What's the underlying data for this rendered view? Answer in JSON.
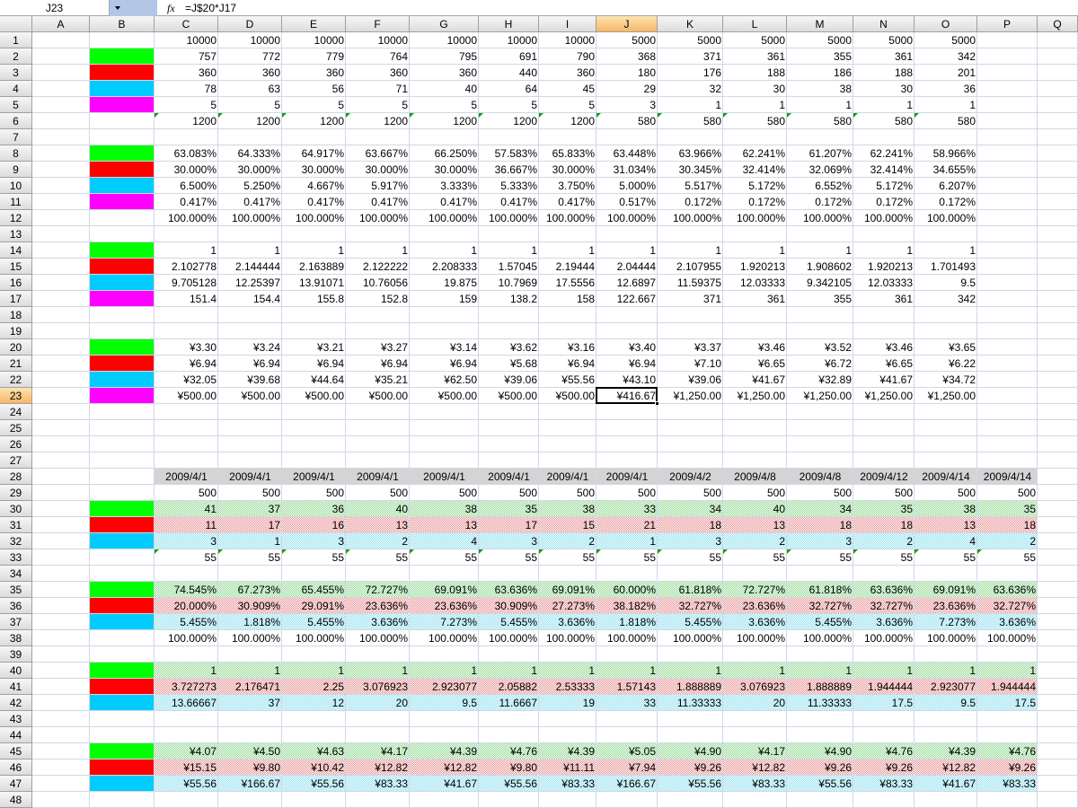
{
  "name_box": "J23",
  "formula": "=J$20*J17",
  "columns": [
    "A",
    "B",
    "C",
    "D",
    "E",
    "F",
    "G",
    "H",
    "I",
    "J",
    "K",
    "L",
    "M",
    "N",
    "O",
    "P",
    "Q"
  ],
  "rows": [
    {
      "number": 1,
      "values": [
        10000,
        10000,
        10000,
        10000,
        10000,
        10000,
        10000,
        5000,
        5000,
        5000,
        5000,
        5000,
        5000
      ]
    },
    {
      "number": 2,
      "swatch": "#00ff00",
      "values": [
        757,
        772,
        779,
        764,
        795,
        691,
        790,
        368,
        371,
        361,
        355,
        361,
        342
      ]
    },
    {
      "number": 3,
      "swatch": "#ff0000",
      "values": [
        360,
        360,
        360,
        360,
        360,
        440,
        360,
        180,
        176,
        188,
        186,
        188,
        201
      ]
    },
    {
      "number": 4,
      "swatch": "#00ccff",
      "values": [
        78,
        63,
        56,
        71,
        40,
        64,
        45,
        29,
        32,
        30,
        38,
        30,
        36
      ]
    },
    {
      "number": 5,
      "swatch": "#ff00ff",
      "values": [
        5,
        5,
        5,
        5,
        5,
        5,
        5,
        3,
        1,
        1,
        1,
        1,
        1
      ]
    },
    {
      "number": 6,
      "flag": true,
      "values": [
        1200,
        1200,
        1200,
        1200,
        1200,
        1200,
        1200,
        580,
        580,
        580,
        580,
        580,
        580
      ]
    },
    {
      "number": 7
    },
    {
      "number": 8,
      "swatch": "#00ff00",
      "values": [
        "63.083%",
        "64.333%",
        "64.917%",
        "63.667%",
        "66.250%",
        "57.583%",
        "65.833%",
        "63.448%",
        "63.966%",
        "62.241%",
        "61.207%",
        "62.241%",
        "58.966%"
      ]
    },
    {
      "number": 9,
      "swatch": "#ff0000",
      "values": [
        "30.000%",
        "30.000%",
        "30.000%",
        "30.000%",
        "30.000%",
        "36.667%",
        "30.000%",
        "31.034%",
        "30.345%",
        "32.414%",
        "32.069%",
        "32.414%",
        "34.655%"
      ]
    },
    {
      "number": 10,
      "swatch": "#00ccff",
      "values": [
        "6.500%",
        "5.250%",
        "4.667%",
        "5.917%",
        "3.333%",
        "5.333%",
        "3.750%",
        "5.000%",
        "5.517%",
        "5.172%",
        "6.552%",
        "5.172%",
        "6.207%"
      ]
    },
    {
      "number": 11,
      "swatch": "#ff00ff",
      "values": [
        "0.417%",
        "0.417%",
        "0.417%",
        "0.417%",
        "0.417%",
        "0.417%",
        "0.417%",
        "0.517%",
        "0.172%",
        "0.172%",
        "0.172%",
        "0.172%",
        "0.172%"
      ]
    },
    {
      "number": 12,
      "values": [
        "100.000%",
        "100.000%",
        "100.000%",
        "100.000%",
        "100.000%",
        "100.000%",
        "100.000%",
        "100.000%",
        "100.000%",
        "100.000%",
        "100.000%",
        "100.000%",
        "100.000%"
      ]
    },
    {
      "number": 13
    },
    {
      "number": 14,
      "swatch": "#00ff00",
      "values": [
        1,
        1,
        1,
        1,
        1,
        1,
        1,
        1,
        1,
        1,
        1,
        1,
        1
      ]
    },
    {
      "number": 15,
      "swatch": "#ff0000",
      "values": [
        2.102778,
        2.144444,
        2.163889,
        2.122222,
        2.208333,
        1.57045,
        2.19444,
        2.04444,
        2.107955,
        1.920213,
        1.908602,
        1.920213,
        1.701493
      ]
    },
    {
      "number": 16,
      "swatch": "#00ccff",
      "values": [
        9.705128,
        12.25397,
        13.91071,
        10.76056,
        19.875,
        10.7969,
        17.5556,
        12.6897,
        11.59375,
        12.03333,
        9.342105,
        12.03333,
        9.5
      ]
    },
    {
      "number": 17,
      "swatch": "#ff00ff",
      "values": [
        151.4,
        154.4,
        155.8,
        152.8,
        159,
        138.2,
        158,
        122.667,
        371,
        361,
        355,
        361,
        342
      ]
    },
    {
      "number": 18
    },
    {
      "number": 19
    },
    {
      "number": 20,
      "swatch": "#00ff00",
      "values": [
        "¥3.30",
        "¥3.24",
        "¥3.21",
        "¥3.27",
        "¥3.14",
        "¥3.62",
        "¥3.16",
        "¥3.40",
        "¥3.37",
        "¥3.46",
        "¥3.52",
        "¥3.46",
        "¥3.65"
      ]
    },
    {
      "number": 21,
      "swatch": "#ff0000",
      "values": [
        "¥6.94",
        "¥6.94",
        "¥6.94",
        "¥6.94",
        "¥6.94",
        "¥5.68",
        "¥6.94",
        "¥6.94",
        "¥7.10",
        "¥6.65",
        "¥6.72",
        "¥6.65",
        "¥6.22"
      ]
    },
    {
      "number": 22,
      "swatch": "#00ccff",
      "values": [
        "¥32.05",
        "¥39.68",
        "¥44.64",
        "¥35.21",
        "¥62.50",
        "¥39.06",
        "¥55.56",
        "¥43.10",
        "¥39.06",
        "¥41.67",
        "¥32.89",
        "¥41.67",
        "¥34.72"
      ]
    },
    {
      "number": 23,
      "swatch": "#ff00ff",
      "values": [
        "¥500.00",
        "¥500.00",
        "¥500.00",
        "¥500.00",
        "¥500.00",
        "¥500.00",
        "¥500.00",
        "¥416.67",
        "¥1,250.00",
        "¥1,250.00",
        "¥1,250.00",
        "¥1,250.00",
        "¥1,250.00"
      ]
    },
    {
      "number": 24
    },
    {
      "number": 25
    },
    {
      "number": 26
    },
    {
      "number": 27
    },
    {
      "number": 28,
      "fill": "#d4d4d4",
      "align": "center",
      "values": [
        "2009/4/1",
        "2009/4/1",
        "2009/4/1",
        "2009/4/1",
        "2009/4/1",
        "2009/4/1",
        "2009/4/1",
        "2009/4/1",
        "2009/4/2",
        "2009/4/8",
        "2009/4/8",
        "2009/4/12",
        "2009/4/14",
        "2009/4/14"
      ]
    },
    {
      "number": 29,
      "values": [
        500,
        500,
        500,
        500,
        500,
        500,
        500,
        500,
        500,
        500,
        500,
        500,
        500,
        500
      ]
    },
    {
      "number": 30,
      "swatch": "#00ff00",
      "fill": "#8fd88f",
      "pattern": true,
      "values": [
        41,
        37,
        36,
        40,
        38,
        35,
        38,
        33,
        34,
        40,
        34,
        35,
        38,
        35
      ]
    },
    {
      "number": 31,
      "swatch": "#ff0000",
      "fill": "#e89090",
      "pattern": true,
      "values": [
        11,
        17,
        16,
        13,
        13,
        17,
        15,
        21,
        18,
        13,
        18,
        18,
        13,
        18
      ]
    },
    {
      "number": 32,
      "swatch": "#00ccff",
      "fill": "#8fdff0",
      "pattern": true,
      "values": [
        3,
        1,
        3,
        2,
        4,
        3,
        2,
        1,
        3,
        2,
        3,
        2,
        4,
        2
      ]
    },
    {
      "number": 33,
      "flag": true,
      "values": [
        55,
        55,
        55,
        55,
        55,
        55,
        55,
        55,
        55,
        55,
        55,
        55,
        55,
        55
      ]
    },
    {
      "number": 34
    },
    {
      "number": 35,
      "swatch": "#00ff00",
      "fill": "#8fd88f",
      "pattern": true,
      "values": [
        "74.545%",
        "67.273%",
        "65.455%",
        "72.727%",
        "69.091%",
        "63.636%",
        "69.091%",
        "60.000%",
        "61.818%",
        "72.727%",
        "61.818%",
        "63.636%",
        "69.091%",
        "63.636%"
      ]
    },
    {
      "number": 36,
      "swatch": "#ff0000",
      "fill": "#e89090",
      "pattern": true,
      "values": [
        "20.000%",
        "30.909%",
        "29.091%",
        "23.636%",
        "23.636%",
        "30.909%",
        "27.273%",
        "38.182%",
        "32.727%",
        "23.636%",
        "32.727%",
        "32.727%",
        "23.636%",
        "32.727%"
      ]
    },
    {
      "number": 37,
      "swatch": "#00ccff",
      "fill": "#8fdff0",
      "pattern": true,
      "values": [
        "5.455%",
        "1.818%",
        "5.455%",
        "3.636%",
        "7.273%",
        "5.455%",
        "3.636%",
        "1.818%",
        "5.455%",
        "3.636%",
        "5.455%",
        "3.636%",
        "7.273%",
        "3.636%"
      ]
    },
    {
      "number": 38,
      "values": [
        "100.000%",
        "100.000%",
        "100.000%",
        "100.000%",
        "100.000%",
        "100.000%",
        "100.000%",
        "100.000%",
        "100.000%",
        "100.000%",
        "100.000%",
        "100.000%",
        "100.000%",
        "100.000%"
      ]
    },
    {
      "number": 39
    },
    {
      "number": 40,
      "swatch": "#00ff00",
      "fill": "#8fd88f",
      "pattern": true,
      "values": [
        1,
        1,
        1,
        1,
        1,
        1,
        1,
        1,
        1,
        1,
        1,
        1,
        1,
        1
      ]
    },
    {
      "number": 41,
      "swatch": "#ff0000",
      "fill": "#e89090",
      "pattern": true,
      "values": [
        3.727273,
        2.176471,
        2.25,
        3.076923,
        2.923077,
        2.05882,
        2.53333,
        1.57143,
        1.888889,
        3.076923,
        1.888889,
        1.944444,
        2.923077,
        1.944444
      ]
    },
    {
      "number": 42,
      "swatch": "#00ccff",
      "fill": "#8fdff0",
      "pattern": true,
      "values": [
        13.66667,
        37,
        12,
        20,
        9.5,
        11.6667,
        19,
        33,
        11.33333,
        20,
        11.33333,
        17.5,
        9.5,
        17.5
      ]
    },
    {
      "number": 43
    },
    {
      "number": 44
    },
    {
      "number": 45,
      "swatch": "#00ff00",
      "fill": "#8fd88f",
      "pattern": true,
      "values": [
        "¥4.07",
        "¥4.50",
        "¥4.63",
        "¥4.17",
        "¥4.39",
        "¥4.76",
        "¥4.39",
        "¥5.05",
        "¥4.90",
        "¥4.17",
        "¥4.90",
        "¥4.76",
        "¥4.39",
        "¥4.76"
      ]
    },
    {
      "number": 46,
      "swatch": "#ff0000",
      "fill": "#e89090",
      "pattern": true,
      "values": [
        "¥15.15",
        "¥9.80",
        "¥10.42",
        "¥12.82",
        "¥12.82",
        "¥9.80",
        "¥11.11",
        "¥7.94",
        "¥9.26",
        "¥12.82",
        "¥9.26",
        "¥9.26",
        "¥12.82",
        "¥9.26"
      ]
    },
    {
      "number": 47,
      "swatch": "#00ccff",
      "fill": "#8fdff0",
      "pattern": true,
      "values": [
        "¥55.56",
        "¥166.67",
        "¥55.56",
        "¥83.33",
        "¥41.67",
        "¥55.56",
        "¥83.33",
        "¥166.67",
        "¥55.56",
        "¥83.33",
        "¥55.56",
        "¥83.33",
        "¥41.67",
        "¥83.33"
      ]
    },
    {
      "number": 48
    }
  ]
}
